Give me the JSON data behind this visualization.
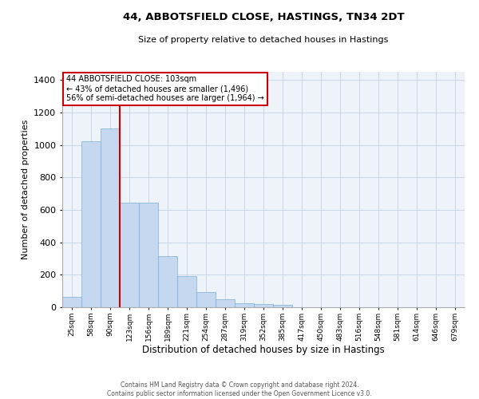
{
  "title": "44, ABBOTSFIELD CLOSE, HASTINGS, TN34 2DT",
  "subtitle": "Size of property relative to detached houses in Hastings",
  "xlabel": "Distribution of detached houses by size in Hastings",
  "ylabel": "Number of detached properties",
  "bar_color": "#c5d8ef",
  "bar_edge_color": "#7aafd4",
  "grid_color": "#c8d8e8",
  "background_color": "#eef3fa",
  "annotation_line_color": "#cc0000",
  "annotation_box_edge_color": "#cc0000",
  "property_label": "44 ABBOTSFIELD CLOSE: 103sqm",
  "annotation_line1": "← 43% of detached houses are smaller (1,496)",
  "annotation_line2": "56% of semi-detached houses are larger (1,964) →",
  "categories": [
    "25sqm",
    "58sqm",
    "90sqm",
    "123sqm",
    "156sqm",
    "189sqm",
    "221sqm",
    "254sqm",
    "287sqm",
    "319sqm",
    "352sqm",
    "385sqm",
    "417sqm",
    "450sqm",
    "483sqm",
    "516sqm",
    "548sqm",
    "581sqm",
    "614sqm",
    "646sqm",
    "679sqm"
  ],
  "values": [
    65,
    1020,
    1100,
    645,
    645,
    315,
    190,
    95,
    50,
    25,
    20,
    15,
    0,
    0,
    0,
    0,
    0,
    0,
    0,
    0,
    0
  ],
  "ylim": [
    0,
    1450
  ],
  "yticks": [
    0,
    200,
    400,
    600,
    800,
    1000,
    1200,
    1400
  ],
  "red_line_index": 2,
  "footer_line1": "Contains HM Land Registry data © Crown copyright and database right 2024.",
  "footer_line2": "Contains public sector information licensed under the Open Government Licence v3.0."
}
